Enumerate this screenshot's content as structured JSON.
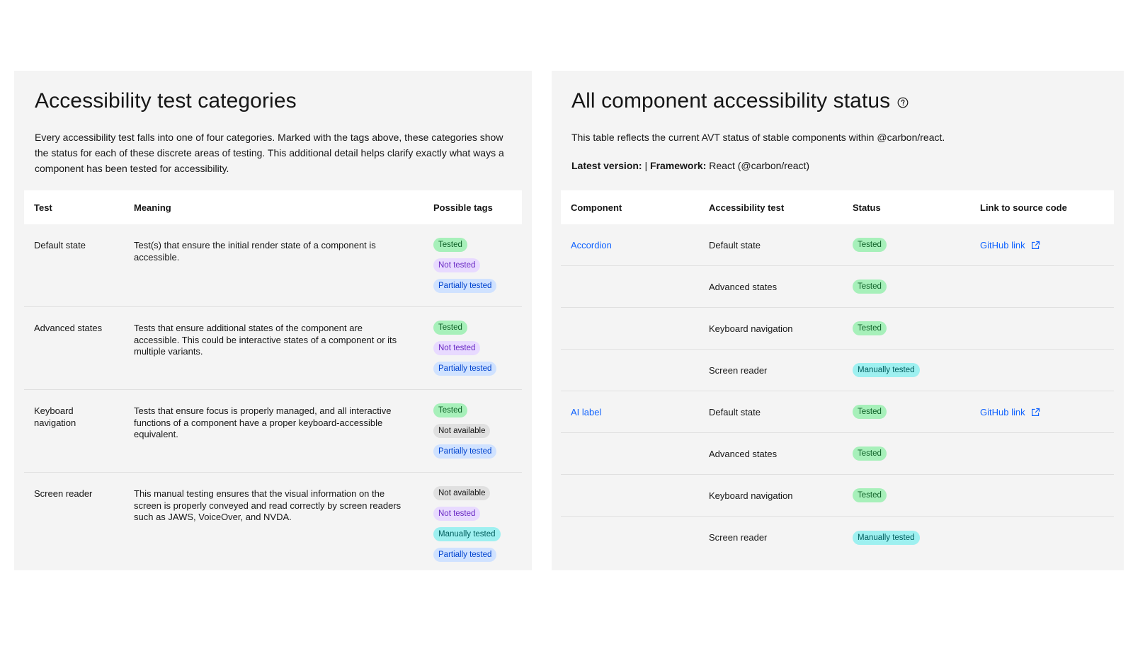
{
  "left_panel": {
    "title": "Accessibility test categories",
    "description": "Every accessibility test falls into one of four categories. Marked with the tags above, these categories show the status for each of these discrete areas of testing. This additional detail helps clarify exactly what ways a component has been tested for accessibility.",
    "table": {
      "headers": [
        "Test",
        "Meaning",
        "Possible tags"
      ],
      "rows": [
        {
          "test": "Default state",
          "meaning": "Test(s) that ensure the initial render state of a component is accessible.",
          "tags": [
            {
              "label": "Tested",
              "color": "#a7f0ba"
            },
            {
              "label": "Not tested",
              "color": "#e8daff"
            },
            {
              "label": "Partially tested",
              "color": "#d0e2ff"
            }
          ]
        },
        {
          "test": "Advanced states",
          "meaning": "Tests that ensure additional states of the component are accessible. This could be interactive states of a component or its multiple variants.",
          "tags": [
            {
              "label": "Tested",
              "color": "#a7f0ba"
            },
            {
              "label": "Not tested",
              "color": "#e8daff"
            },
            {
              "label": "Partially tested",
              "color": "#d0e2ff"
            }
          ]
        },
        {
          "test": "Keyboard navigation",
          "meaning": "Tests that ensure focus is properly managed, and all interactive functions of a component have a proper keyboard-accessible equivalent.",
          "tags": [
            {
              "label": "Tested",
              "color": "#a7f0ba"
            },
            {
              "label": "Not available",
              "color": "#e0e0e0"
            },
            {
              "label": "Partially tested",
              "color": "#d0e2ff"
            }
          ]
        },
        {
          "test": "Screen reader",
          "meaning": "This manual testing ensures that the visual information on the screen is properly conveyed and read correctly by screen readers such as JAWS, VoiceOver, and NVDA.",
          "tags": [
            {
              "label": "Not available",
              "color": "#e0e0e0"
            },
            {
              "label": "Not tested",
              "color": "#e8daff"
            },
            {
              "label": "Manually tested",
              "color": "#9ef0f0"
            },
            {
              "label": "Partially tested",
              "color": "#d0e2ff"
            }
          ]
        }
      ]
    }
  },
  "right_panel": {
    "title": "All component accessibility status",
    "help_icon": "question-circle-icon",
    "description": "This table reflects the current AVT status of stable components within @carbon/react.",
    "meta": {
      "version_label": "Latest version:",
      "separator": " | ",
      "framework_label": "Framework:",
      "framework_value": " React (@carbon/react)"
    },
    "table": {
      "headers": [
        "Component",
        "Accessibility test",
        "Status",
        "Link to source code"
      ],
      "rows": [
        {
          "component": "Accordion",
          "test": "Default state",
          "status": "Tested",
          "status_color": "#a7f0ba",
          "link": "GitHub link"
        },
        {
          "component": "",
          "test": "Advanced states",
          "status": "Tested",
          "status_color": "#a7f0ba",
          "link": ""
        },
        {
          "component": "",
          "test": "Keyboard navigation",
          "status": "Tested",
          "status_color": "#a7f0ba",
          "link": ""
        },
        {
          "component": "",
          "test": "Screen reader",
          "status": "Manually tested",
          "status_color": "#9ef0f0",
          "link": ""
        },
        {
          "component": "AI label",
          "test": "Default state",
          "status": "Tested",
          "status_color": "#a7f0ba",
          "link": "GitHub link"
        },
        {
          "component": "",
          "test": "Advanced states",
          "status": "Tested",
          "status_color": "#a7f0ba",
          "link": ""
        },
        {
          "component": "",
          "test": "Keyboard navigation",
          "status": "Tested",
          "status_color": "#a7f0ba",
          "link": ""
        },
        {
          "component": "",
          "test": "Screen reader",
          "status": "Manually tested",
          "status_color": "#9ef0f0",
          "link": ""
        }
      ]
    },
    "link_icon": "external-link-icon"
  },
  "colors": {
    "panel_bg": "#f4f4f4",
    "link": "#0f62fe",
    "tag_green": "#a7f0ba",
    "tag_purple": "#e8daff",
    "tag_blue": "#d0e2ff",
    "tag_gray": "#e0e0e0",
    "tag_teal": "#9ef0f0"
  }
}
